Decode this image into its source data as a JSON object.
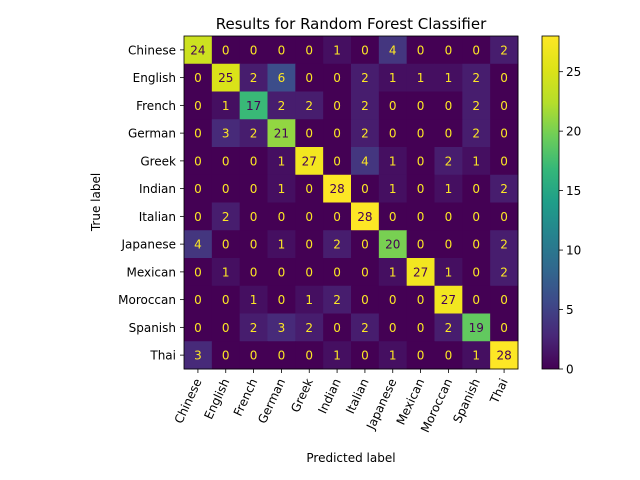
{
  "chart_data": {
    "type": "heatmap",
    "title": "Results for Random Forest Classifier",
    "xlabel": "Predicted label",
    "ylabel": "True label",
    "labels": [
      "Chinese",
      "English",
      "French",
      "German",
      "Greek",
      "Indian",
      "Italian",
      "Japanese",
      "Mexican",
      "Moroccan",
      "Spanish",
      "Thai"
    ],
    "matrix": [
      [
        24,
        0,
        0,
        0,
        0,
        1,
        0,
        4,
        0,
        0,
        0,
        2
      ],
      [
        0,
        25,
        2,
        6,
        0,
        0,
        2,
        1,
        1,
        1,
        2,
        0
      ],
      [
        0,
        1,
        17,
        2,
        2,
        0,
        2,
        0,
        0,
        0,
        2,
        0
      ],
      [
        0,
        3,
        2,
        21,
        0,
        0,
        2,
        0,
        0,
        0,
        2,
        0
      ],
      [
        0,
        0,
        0,
        1,
        27,
        0,
        4,
        1,
        0,
        2,
        1,
        0
      ],
      [
        0,
        0,
        0,
        1,
        0,
        28,
        0,
        1,
        0,
        1,
        0,
        2
      ],
      [
        0,
        2,
        0,
        0,
        0,
        0,
        28,
        0,
        0,
        0,
        0,
        0
      ],
      [
        4,
        0,
        0,
        1,
        0,
        2,
        0,
        20,
        0,
        0,
        0,
        2
      ],
      [
        0,
        1,
        0,
        0,
        0,
        0,
        0,
        1,
        27,
        1,
        0,
        2
      ],
      [
        0,
        0,
        1,
        0,
        1,
        2,
        0,
        0,
        0,
        27,
        0,
        0
      ],
      [
        0,
        0,
        2,
        3,
        2,
        0,
        2,
        0,
        0,
        2,
        19,
        0
      ],
      [
        3,
        0,
        0,
        0,
        0,
        1,
        0,
        1,
        0,
        0,
        1,
        28
      ]
    ],
    "colormap": "viridis",
    "vmin": 0,
    "vmax": 28,
    "colorbar_ticks": [
      0,
      5,
      10,
      15,
      20,
      25
    ],
    "x_tick_rotation_deg": 65
  }
}
